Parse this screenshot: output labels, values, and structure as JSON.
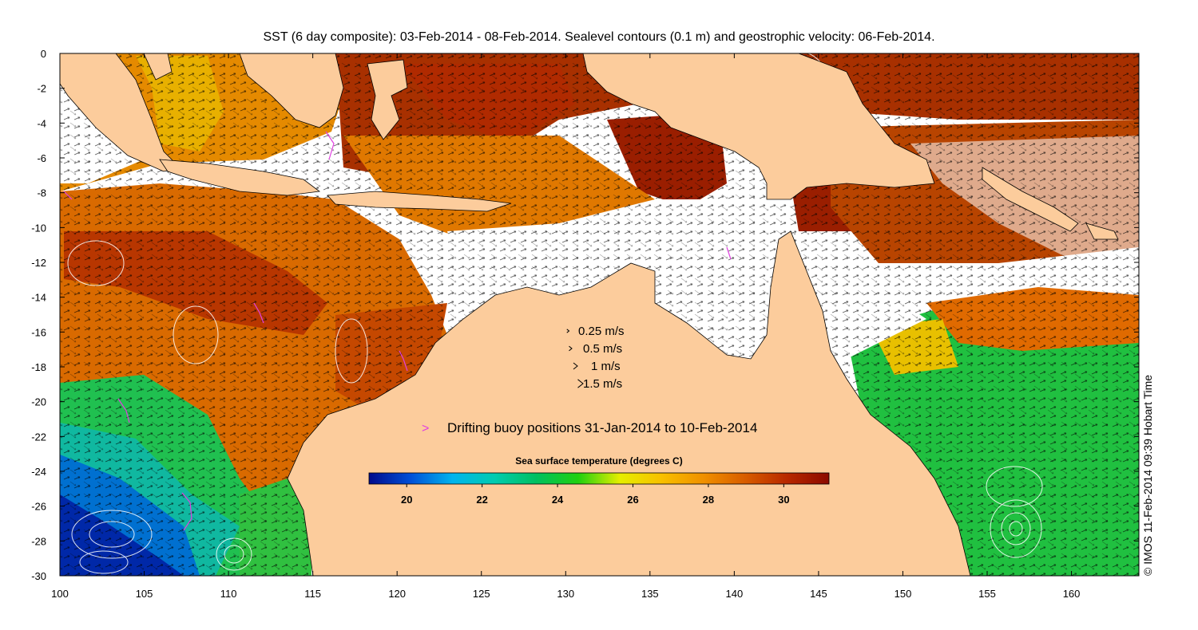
{
  "title": "SST (6 day composite): 03-Feb-2014 - 08-Feb-2014. Sealevel contours (0.1 m) and geostrophic velocity: 06-Feb-2014.",
  "credit": "© IMOS 11-Feb-2014 09:39 Hobart Time",
  "axes": {
    "lon_min": 100,
    "lon_max": 164,
    "lat_min": -30,
    "lat_max": 0,
    "x_ticks": [
      {
        "value": 100,
        "label": "100"
      },
      {
        "value": 105,
        "label": "105"
      },
      {
        "value": 110,
        "label": "110"
      },
      {
        "value": 115,
        "label": "115"
      },
      {
        "value": 120,
        "label": "120"
      },
      {
        "value": 125,
        "label": "125"
      },
      {
        "value": 130,
        "label": "130"
      },
      {
        "value": 135,
        "label": "135"
      },
      {
        "value": 140,
        "label": "140"
      },
      {
        "value": 145,
        "label": "145"
      },
      {
        "value": 150,
        "label": "150"
      },
      {
        "value": 155,
        "label": "155"
      },
      {
        "value": 160,
        "label": "160"
      }
    ],
    "y_ticks": [
      {
        "value": 0,
        "label": "0"
      },
      {
        "value": -2,
        "label": "-2"
      },
      {
        "value": -4,
        "label": "-4"
      },
      {
        "value": -6,
        "label": "-6"
      },
      {
        "value": -8,
        "label": "-8"
      },
      {
        "value": -10,
        "label": "-10"
      },
      {
        "value": -12,
        "label": "-12"
      },
      {
        "value": -14,
        "label": "-14"
      },
      {
        "value": -16,
        "label": "-16"
      },
      {
        "value": -18,
        "label": "-18"
      },
      {
        "value": -20,
        "label": "-20"
      },
      {
        "value": -22,
        "label": "-22"
      },
      {
        "value": -24,
        "label": "-24"
      },
      {
        "value": -26,
        "label": "-26"
      },
      {
        "value": -28,
        "label": "-28"
      },
      {
        "value": -30,
        "label": "-30"
      }
    ]
  },
  "velocity_legend": [
    {
      "speed": 0.25,
      "label": "0.25 m/s"
    },
    {
      "speed": 0.5,
      "label": "0.5 m/s"
    },
    {
      "speed": 1,
      "label": "1 m/s"
    },
    {
      "speed": 1.5,
      "label": "1.5 m/s"
    }
  ],
  "buoy_legend": {
    "label": "Drifting buoy positions 31-Jan-2014 to 10-Feb-2014",
    "color": "#e040e0"
  },
  "colorbar": {
    "title": "Sea surface temperature (degrees C)",
    "min": 19,
    "max": 31.2,
    "ticks": [
      {
        "value": 20,
        "label": "20"
      },
      {
        "value": 22,
        "label": "22"
      },
      {
        "value": 24,
        "label": "24"
      },
      {
        "value": 26,
        "label": "26"
      },
      {
        "value": 28,
        "label": "28"
      },
      {
        "value": 30,
        "label": "30"
      }
    ],
    "colors": [
      "#000a8c",
      "#0050d8",
      "#00b4ee",
      "#00ccb0",
      "#00c060",
      "#20d010",
      "#e6ee00",
      "#f8c000",
      "#f09000",
      "#d85c00",
      "#b82800",
      "#8c0a00"
    ]
  },
  "colors": {
    "land": "#fccc9c",
    "no_data": "#ffffff",
    "sst_warm": "#b23200",
    "sst_mid": "#e47c00",
    "sst_cool": "#20c050",
    "sst_cold": "#0028a8"
  }
}
